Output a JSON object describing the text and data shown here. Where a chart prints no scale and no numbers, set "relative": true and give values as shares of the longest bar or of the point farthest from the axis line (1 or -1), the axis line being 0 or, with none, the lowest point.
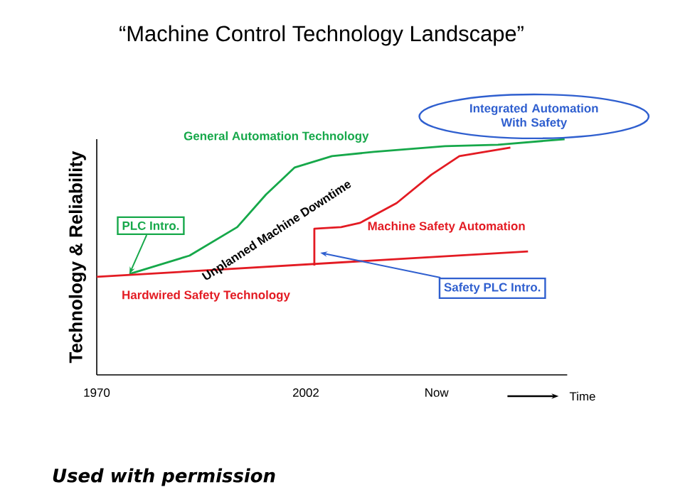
{
  "chart_data": {
    "type": "line",
    "title": "“Machine Control Technology Landscape”",
    "xlabel": "Time",
    "ylabel": "Technology & Reliability",
    "relative": true,
    "xlim": [
      1970,
      2042
    ],
    "xticks": [
      1970,
      2002,
      {
        "value": 2022,
        "label": "Now"
      }
    ],
    "series": [
      {
        "name": "General Automation Technology",
        "color": "#16a84a",
        "x": [
          1975,
          1984.2,
          1991.5,
          1995.9,
          2000.3,
          2006,
          2012.4,
          2023.3,
          2031.4,
          2041.6
        ],
        "values": [
          0.428,
          0.506,
          0.627,
          0.765,
          0.88,
          0.928,
          0.946,
          0.97,
          0.976,
          1
        ]
      },
      {
        "name": "Hardwired Safety Technology",
        "color": "#e31b23",
        "x": [
          1970,
          2036
        ],
        "values": [
          0.416,
          0.524
        ]
      },
      {
        "name": "Machine Safety Automation",
        "color": "#e31b23",
        "x": [
          2003.3,
          2003.3,
          2007.4,
          2010.3,
          2015.9,
          2021.2,
          2025.5,
          2033.3
        ],
        "values": [
          0.464,
          0.62,
          0.627,
          0.645,
          0.729,
          0.849,
          0.928,
          0.964
        ]
      }
    ],
    "annotations": [
      {
        "text": "PLC Intro.",
        "x": 1975,
        "y": 0.428
      },
      {
        "text": "Safety PLC Intro.",
        "x": 2004.2,
        "y": 0.518
      },
      {
        "text": "Integrated Automation With Safety",
        "x": 2033,
        "y": 0.97
      },
      "Unplanned Machine Downtime",
      "Used with permission"
    ]
  }
}
